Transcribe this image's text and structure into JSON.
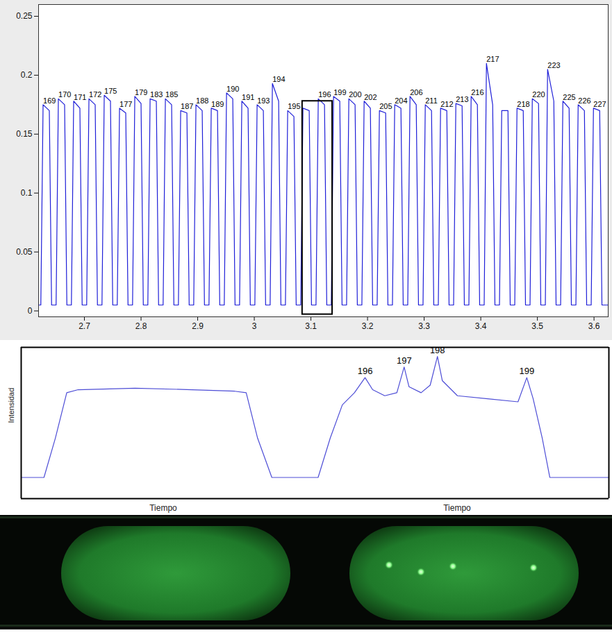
{
  "chart_data": [
    {
      "type": "line",
      "color": "#1f1fd8",
      "xlim": [
        2.619,
        3.625
      ],
      "ylim": [
        -0.005,
        0.26
      ],
      "xticks": [
        2.7,
        2.8,
        2.9,
        3,
        3.1,
        3.2,
        3.3,
        3.4,
        3.5,
        3.6
      ],
      "yticks": [
        0,
        0.05,
        0.1,
        0.15,
        0.2,
        0.25
      ],
      "x": [
        2.619,
        2.623,
        2.627,
        2.638,
        2.642,
        2.65,
        2.654,
        2.665,
        2.669,
        2.677,
        2.681,
        2.692,
        2.696,
        2.704,
        2.708,
        2.719,
        2.723,
        2.731,
        2.735,
        2.746,
        2.75,
        2.758,
        2.762,
        2.773,
        2.777,
        2.785,
        2.789,
        2.8,
        2.804,
        2.812,
        2.816,
        2.827,
        2.831,
        2.839,
        2.843,
        2.854,
        2.858,
        2.866,
        2.87,
        2.881,
        2.885,
        2.893,
        2.897,
        2.908,
        2.912,
        2.92,
        2.924,
        2.935,
        2.939,
        2.947,
        2.951,
        2.962,
        2.966,
        2.974,
        2.978,
        2.989,
        2.993,
        3.001,
        3.005,
        3.016,
        3.02,
        3.028,
        3.032,
        3.043,
        3.047,
        3.055,
        3.059,
        3.07,
        3.074,
        3.082,
        3.086,
        3.097,
        3.101,
        3.109,
        3.113,
        3.124,
        3.128,
        3.136,
        3.14,
        3.151,
        3.155,
        3.163,
        3.167,
        3.178,
        3.182,
        3.19,
        3.194,
        3.205,
        3.209,
        3.217,
        3.221,
        3.232,
        3.236,
        3.244,
        3.248,
        3.259,
        3.263,
        3.271,
        3.275,
        3.286,
        3.29,
        3.298,
        3.302,
        3.313,
        3.317,
        3.325,
        3.329,
        3.34,
        3.344,
        3.352,
        3.356,
        3.367,
        3.371,
        3.379,
        3.383,
        3.394,
        3.398,
        3.406,
        3.41,
        3.421,
        3.425,
        3.433,
        3.437,
        3.448,
        3.452,
        3.46,
        3.464,
        3.475,
        3.479,
        3.487,
        3.491,
        3.502,
        3.506,
        3.514,
        3.518,
        3.529,
        3.533,
        3.541,
        3.545,
        3.556,
        3.56,
        3.568,
        3.572,
        3.583,
        3.587,
        3.595,
        3.599,
        3.61,
        3.614,
        3.625
      ],
      "values": [
        0.005,
        0.005,
        0.175,
        0.17,
        0.005,
        0.005,
        0.18,
        0.175,
        0.005,
        0.005,
        0.178,
        0.172,
        0.005,
        0.005,
        0.18,
        0.175,
        0.005,
        0.005,
        0.183,
        0.178,
        0.005,
        0.005,
        0.172,
        0.168,
        0.005,
        0.005,
        0.182,
        0.176,
        0.005,
        0.005,
        0.18,
        0.178,
        0.005,
        0.005,
        0.18,
        0.175,
        0.005,
        0.005,
        0.17,
        0.168,
        0.005,
        0.005,
        0.175,
        0.17,
        0.005,
        0.005,
        0.172,
        0.17,
        0.005,
        0.005,
        0.185,
        0.18,
        0.005,
        0.005,
        0.178,
        0.172,
        0.005,
        0.005,
        0.175,
        0.17,
        0.005,
        0.005,
        0.193,
        0.178,
        0.005,
        0.005,
        0.17,
        0.165,
        0.005,
        0.005,
        0.172,
        0.17,
        0.005,
        0.005,
        0.18,
        0.175,
        0.005,
        0.005,
        0.182,
        0.178,
        0.005,
        0.005,
        0.18,
        0.175,
        0.005,
        0.005,
        0.178,
        0.172,
        0.005,
        0.005,
        0.17,
        0.168,
        0.005,
        0.005,
        0.175,
        0.172,
        0.005,
        0.005,
        0.182,
        0.175,
        0.005,
        0.005,
        0.175,
        0.17,
        0.005,
        0.005,
        0.172,
        0.17,
        0.005,
        0.005,
        0.176,
        0.174,
        0.005,
        0.005,
        0.182,
        0.175,
        0.005,
        0.005,
        0.21,
        0.175,
        0.005,
        0.005,
        0.17,
        0.17,
        0.005,
        0.005,
        0.172,
        0.17,
        0.005,
        0.005,
        0.18,
        0.176,
        0.005,
        0.005,
        0.205,
        0.178,
        0.005,
        0.005,
        0.178,
        0.172,
        0.005,
        0.005,
        0.175,
        0.17,
        0.005,
        0.005,
        0.172,
        0.17,
        0.005,
        0.005
      ],
      "annotations": [
        {
          "text": "169",
          "x": 2.627,
          "y": 0.175
        },
        {
          "text": "170",
          "x": 2.654,
          "y": 0.18
        },
        {
          "text": "171",
          "x": 2.681,
          "y": 0.178
        },
        {
          "text": "172",
          "x": 2.708,
          "y": 0.18
        },
        {
          "text": "175",
          "x": 2.735,
          "y": 0.183
        },
        {
          "text": "177",
          "x": 2.762,
          "y": 0.172
        },
        {
          "text": "179",
          "x": 2.789,
          "y": 0.182
        },
        {
          "text": "183",
          "x": 2.816,
          "y": 0.18
        },
        {
          "text": "185",
          "x": 2.843,
          "y": 0.18
        },
        {
          "text": "187",
          "x": 2.87,
          "y": 0.17
        },
        {
          "text": "188",
          "x": 2.897,
          "y": 0.175
        },
        {
          "text": "189",
          "x": 2.924,
          "y": 0.172
        },
        {
          "text": "190",
          "x": 2.951,
          "y": 0.185
        },
        {
          "text": "191",
          "x": 2.978,
          "y": 0.178
        },
        {
          "text": "193",
          "x": 3.005,
          "y": 0.175
        },
        {
          "text": "194",
          "x": 3.032,
          "y": 0.193
        },
        {
          "text": "195",
          "x": 3.059,
          "y": 0.17
        },
        {
          "text": "196",
          "x": 3.113,
          "y": 0.18
        },
        {
          "text": "199",
          "x": 3.14,
          "y": 0.182
        },
        {
          "text": "200",
          "x": 3.167,
          "y": 0.18
        },
        {
          "text": "202",
          "x": 3.194,
          "y": 0.178
        },
        {
          "text": "205",
          "x": 3.221,
          "y": 0.17
        },
        {
          "text": "204",
          "x": 3.248,
          "y": 0.175
        },
        {
          "text": "206",
          "x": 3.275,
          "y": 0.182
        },
        {
          "text": "211",
          "x": 3.302,
          "y": 0.175
        },
        {
          "text": "212",
          "x": 3.329,
          "y": 0.172
        },
        {
          "text": "213",
          "x": 3.356,
          "y": 0.176
        },
        {
          "text": "216",
          "x": 3.383,
          "y": 0.182
        },
        {
          "text": "217",
          "x": 3.41,
          "y": 0.21
        },
        {
          "text": "218",
          "x": 3.464,
          "y": 0.172
        },
        {
          "text": "220",
          "x": 3.491,
          "y": 0.18
        },
        {
          "text": "223",
          "x": 3.518,
          "y": 0.205
        },
        {
          "text": "225",
          "x": 3.545,
          "y": 0.178
        },
        {
          "text": "226",
          "x": 3.572,
          "y": 0.175
        },
        {
          "text": "227",
          "x": 3.599,
          "y": 0.172
        }
      ],
      "zoom_box": {
        "x1": 3.085,
        "x2": 3.138,
        "y1": -0.003,
        "y2": 0.178
      }
    },
    {
      "type": "line",
      "color": "#4d4dd6",
      "ylabel": "Intensidad",
      "xlabel": "Tiempo",
      "tick_labels": false,
      "xlim": [
        0,
        100
      ],
      "ylim": [
        0,
        100
      ],
      "x": [
        0,
        8,
        12,
        16,
        20,
        40,
        60,
        75,
        79,
        83,
        88,
        100
      ],
      "values": [
        14,
        14,
        40,
        70,
        72,
        73,
        72,
        71,
        70,
        40,
        14,
        14
      ]
    },
    {
      "type": "line",
      "color": "#4d4dd6",
      "xlabel": "Tiempo",
      "tick_labels": false,
      "xlim": [
        0,
        100
      ],
      "ylim": [
        0,
        100
      ],
      "x": [
        0,
        4,
        8,
        12,
        16,
        19.5,
        22,
        26,
        30,
        32.4,
        34,
        38,
        41,
        43.4,
        45,
        50,
        60,
        70,
        72.9,
        75,
        78,
        80.5,
        84,
        100
      ],
      "values": [
        14,
        14,
        40,
        62,
        70,
        80,
        72,
        68,
        70,
        87,
        74,
        70,
        75,
        94,
        78,
        68,
        66,
        64,
        80,
        66,
        40,
        14,
        14,
        14
      ],
      "annotations": [
        {
          "text": "196",
          "x": 19.5,
          "y": 80
        },
        {
          "text": "197",
          "x": 32.4,
          "y": 87
        },
        {
          "text": "198",
          "x": 43.4,
          "y": 94
        },
        {
          "text": "199",
          "x": 72.9,
          "y": 80
        }
      ]
    }
  ]
}
